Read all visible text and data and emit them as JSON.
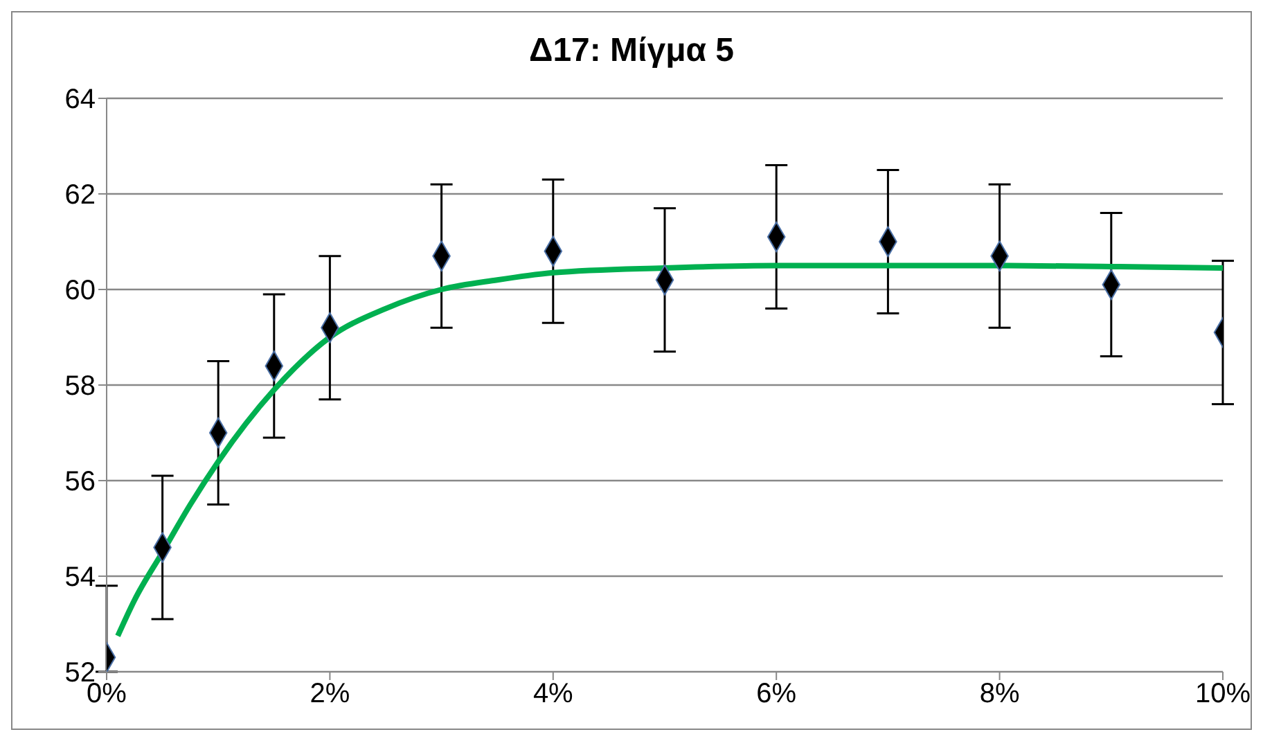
{
  "chart_data": {
    "type": "scatter",
    "title": "Δ17: Μίγμα 5",
    "xlim": [
      0,
      10
    ],
    "xticks": [
      {
        "value": 0,
        "label": "0%"
      },
      {
        "value": 2,
        "label": "2%"
      },
      {
        "value": 4,
        "label": "4%"
      },
      {
        "value": 6,
        "label": "6%"
      },
      {
        "value": 8,
        "label": "8%"
      },
      {
        "value": 10,
        "label": "10%"
      }
    ],
    "ylim": [
      52,
      64
    ],
    "yticks": [
      52,
      54,
      56,
      58,
      60,
      62,
      64
    ],
    "grid": "y",
    "legend": false,
    "series": [
      {
        "color": "#000000",
        "marker": "diamond",
        "x": [
          0,
          0.5,
          1,
          1.5,
          2,
          3,
          4,
          5,
          6,
          7,
          8,
          9,
          10
        ],
        "values": [
          52.3,
          54.6,
          57.0,
          58.4,
          59.2,
          60.7,
          60.8,
          60.2,
          61.1,
          61.0,
          60.7,
          60.1,
          59.1
        ],
        "errors": [
          [
            52,
            53.8
          ],
          1.5,
          1.5,
          1.5,
          1.5,
          1.5,
          1.5,
          1.5,
          1.5,
          1.5,
          1.5,
          1.5,
          1.5
        ]
      },
      {
        "type": "line",
        "color": "#00b050",
        "marker": "none",
        "x": [
          0.1,
          0.25,
          0.5,
          0.75,
          1,
          1.5,
          2,
          2.5,
          3,
          3.5,
          4,
          5,
          6,
          7,
          8,
          9,
          10
        ],
        "values": [
          52.75,
          53.5,
          54.5,
          55.5,
          56.4,
          57.9,
          59.0,
          59.6,
          60.0,
          60.2,
          60.35,
          60.45,
          60.5,
          60.5,
          60.5,
          60.48,
          60.45
        ]
      }
    ]
  }
}
